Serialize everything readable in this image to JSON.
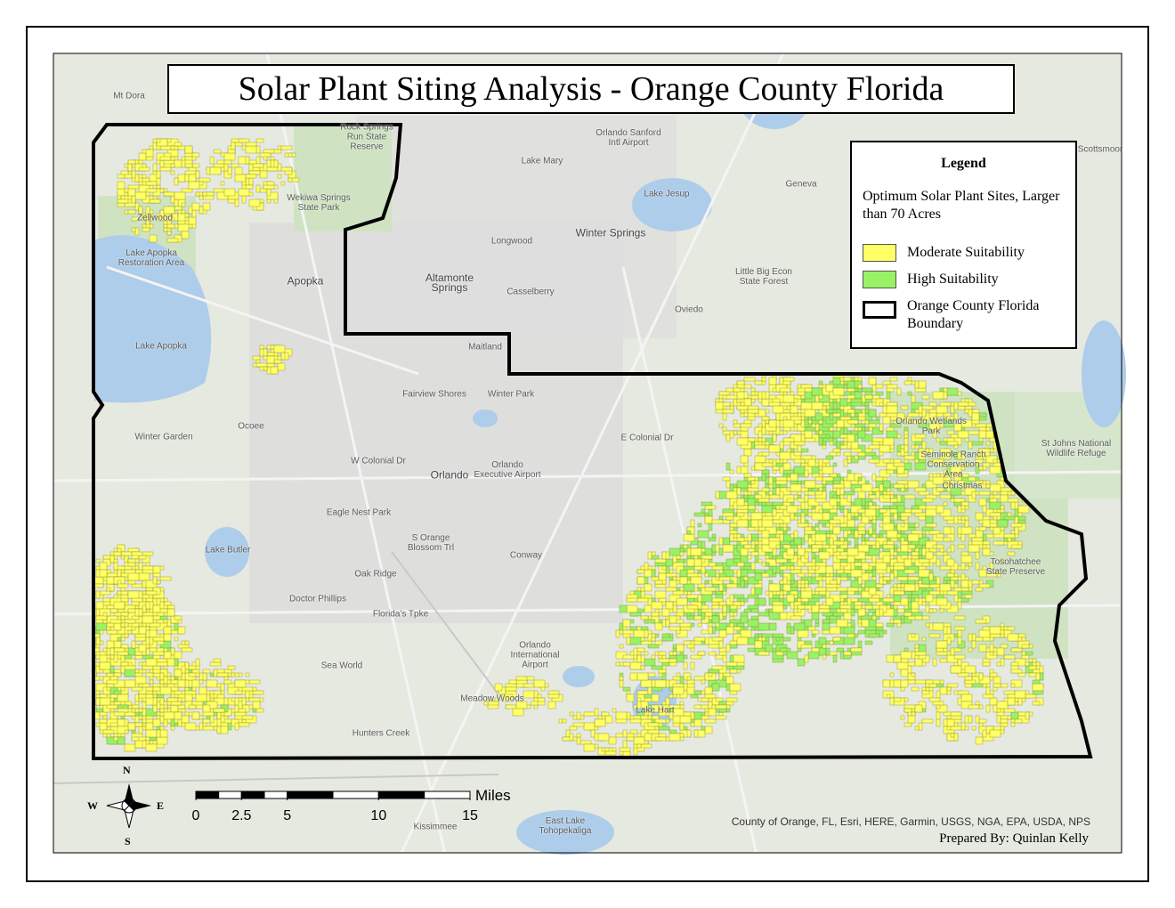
{
  "title": "Solar Plant Siting Analysis - Orange County Florida",
  "legend": {
    "title": "Legend",
    "heading": "Optimum Solar Plant Sites, Larger than 70 Acres",
    "items": [
      "Moderate Suitability",
      "High Suitability",
      "Orange County Florida Boundary"
    ]
  },
  "places": [
    "Mt Dora",
    "Wekiwa Springs State Park",
    "Zellwood",
    "Lake Apopka Restoration Area",
    "Apopka",
    "Lake Apopka",
    "Ocoee",
    "Winter Garden",
    "Altamonte Springs",
    "Longwood",
    "Casselberry",
    "Winter Springs",
    "Lake Mary",
    "Lake Jesup",
    "Oviedo",
    "Maitland",
    "Winter Park",
    "Fairview Shores",
    "Orlando",
    "Orlando Executive Airport",
    "Geneva",
    "Little Big Econ State Forest",
    "Orlando Wetlands Park",
    "Seminole Ranch Conservation Area",
    "St Johns National Wildlife Refuge",
    "Christmas",
    "Tosohatchee State Preserve",
    "Conway",
    "Orlando International Airport",
    "Lake Hart",
    "Meadow Woods",
    "Hunters Creek",
    "Sea World",
    "Doctor Phillips",
    "Oak Ridge",
    "Eagle Nest Park",
    "Lake Butler",
    "Kissimmee",
    "East Lake Tohopekaliga",
    "Scottsmoor",
    "Orlando Sanford Intl Airport",
    "Rock Springs Run State Reserve",
    "E Colonial Dr",
    "W Colonial Dr",
    "Florida's Tpke",
    "S Orange Blossom Trl"
  ],
  "scale_bar": {
    "unit": "Miles",
    "ticks": [
      0,
      2.5,
      5,
      10,
      15
    ]
  },
  "compass": {
    "north": "N",
    "south": "S",
    "east": "E",
    "west": "W"
  },
  "credits": "County of Orange, FL, Esri, HERE, Garmin, USGS, NGA, EPA, USDA, NPS",
  "author": "Prepared By: Quinlan Kelly"
}
